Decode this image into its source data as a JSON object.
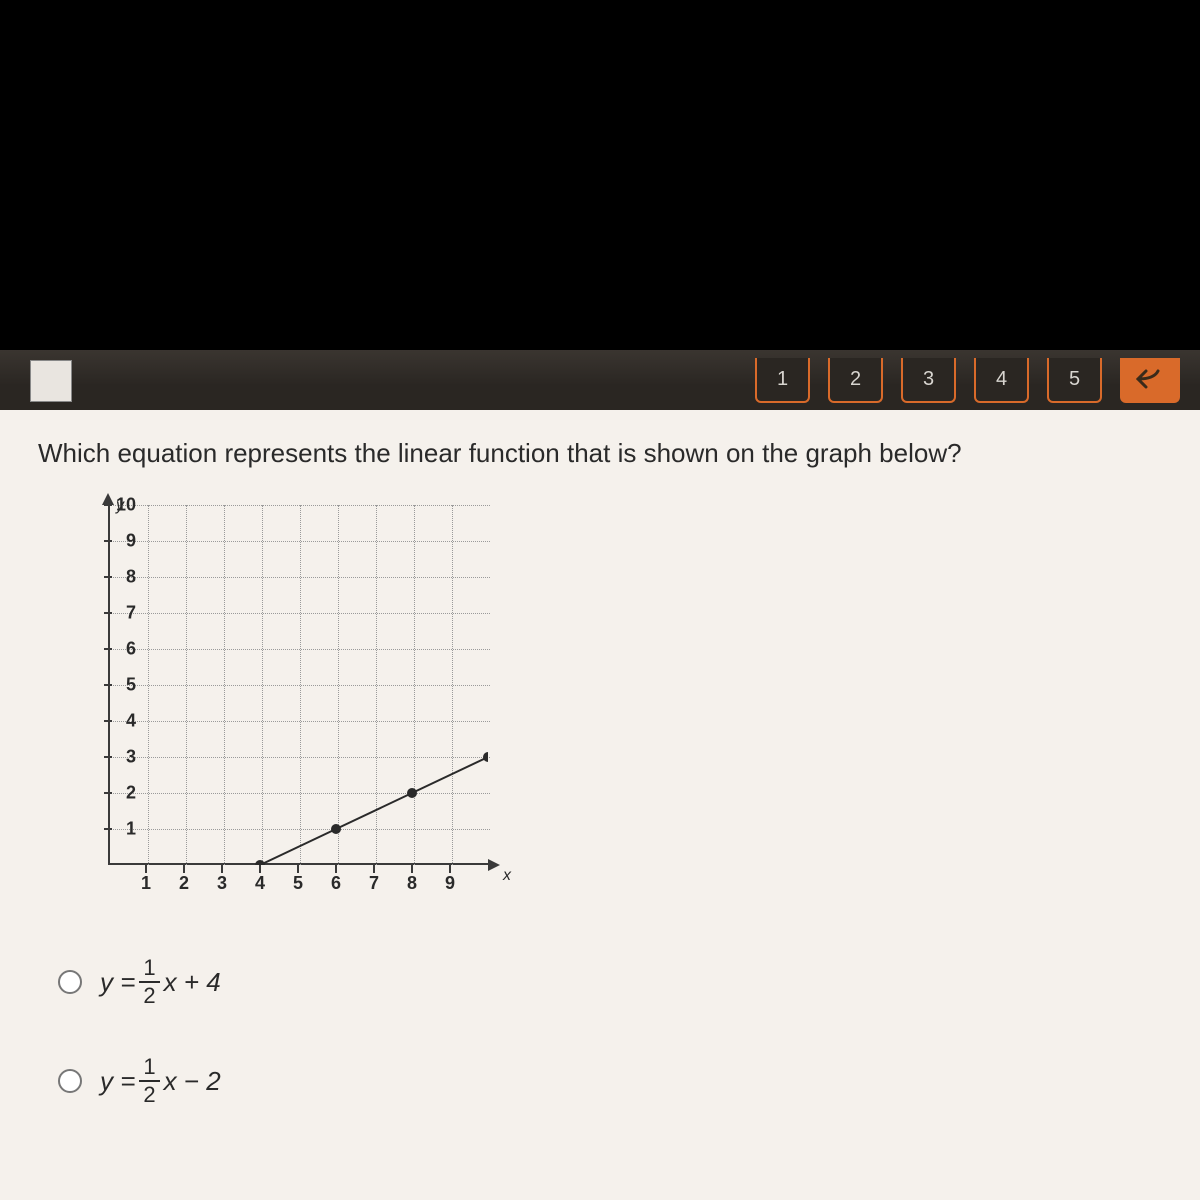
{
  "toolbar": {
    "nav_buttons": [
      "1",
      "2",
      "3",
      "4",
      "5"
    ],
    "back_arrow": "◄"
  },
  "question": "Which equation represents the linear function that is shown on the graph below?",
  "chart": {
    "type": "line",
    "xlim": [
      0,
      10
    ],
    "ylim": [
      0,
      10
    ],
    "xtick_step": 1,
    "ytick_step": 1,
    "x_ticks": [
      1,
      2,
      3,
      4,
      5,
      6,
      7,
      8,
      9
    ],
    "y_ticks": [
      1,
      2,
      3,
      4,
      5,
      6,
      7,
      8,
      9,
      10
    ],
    "x_axis_label": "x",
    "y_axis_label": "y",
    "grid_color": "#9a9a9a",
    "axis_color": "#3a3a3a",
    "background_color": "#f5f1ec",
    "point_color": "#2a2a2a",
    "line_color": "#2a2a2a",
    "line_width": 2,
    "point_radius": 5,
    "points": [
      {
        "x": 4,
        "y": 0
      },
      {
        "x": 6,
        "y": 1
      },
      {
        "x": 8,
        "y": 2
      },
      {
        "x": 10,
        "y": 3
      }
    ]
  },
  "options": [
    {
      "prefix": "y =",
      "frac_num": "1",
      "frac_den": "2",
      "suffix": "x + 4"
    },
    {
      "prefix": "y =",
      "frac_num": "1",
      "frac_den": "2",
      "suffix": "x − 2"
    }
  ],
  "colors": {
    "page_bg": "#000000",
    "panel_bg": "#f5f1ec",
    "toolbar_bg": "#2a2622",
    "accent": "#d96a2a",
    "text": "#2a2a2a"
  },
  "fonts": {
    "question_size_pt": 20,
    "tick_size_pt": 13,
    "option_size_pt": 20
  }
}
